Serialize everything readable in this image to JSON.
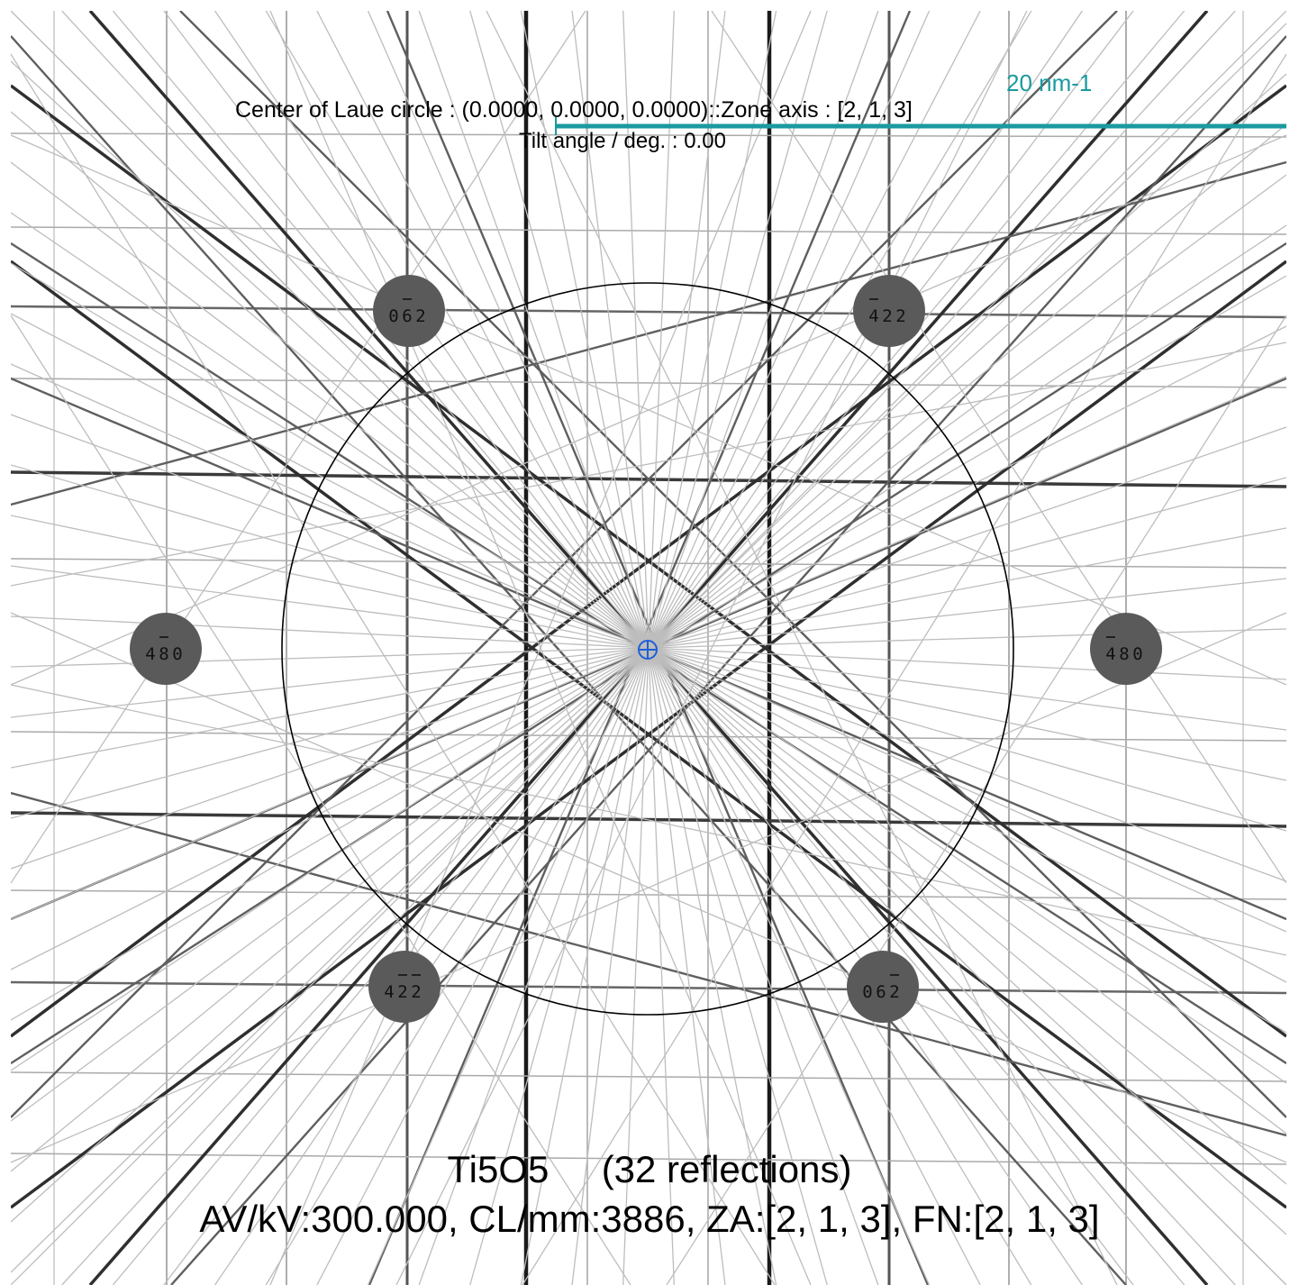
{
  "header": {
    "laue_center": "Center of Laue circle : (0.0000, 0.0000, 0.0000)::Zone axis : [2, 1, 3]",
    "tilt": "Tilt angle / deg. : 0.00"
  },
  "scale_bar": {
    "label": "20 nm-1",
    "color": "#1a9aa0"
  },
  "center_marker": {
    "icon": "crosshair-circle-icon",
    "color": "#1f5fd8"
  },
  "reflections": [
    {
      "digits": [
        "0",
        "6",
        "2"
      ],
      "bars": [
        false,
        true,
        false
      ]
    },
    {
      "digits": [
        "4",
        "2",
        "2"
      ],
      "bars": [
        true,
        false,
        false
      ]
    },
    {
      "digits": [
        "4",
        "8",
        "0"
      ],
      "bars": [
        false,
        true,
        false
      ]
    },
    {
      "digits": [
        "4",
        "8",
        "0"
      ],
      "bars": [
        true,
        false,
        false
      ]
    },
    {
      "digits": [
        "4",
        "2",
        "2"
      ],
      "bars": [
        false,
        true,
        true
      ]
    },
    {
      "digits": [
        "0",
        "6",
        "2"
      ],
      "bars": [
        false,
        false,
        true
      ]
    }
  ],
  "footer": {
    "title": "Ti5O5     (32 reflections)",
    "params": "AV/kV:300.000, CL/mm:3886, ZA:[2, 1, 3], FN:[2, 1, 3]"
  }
}
